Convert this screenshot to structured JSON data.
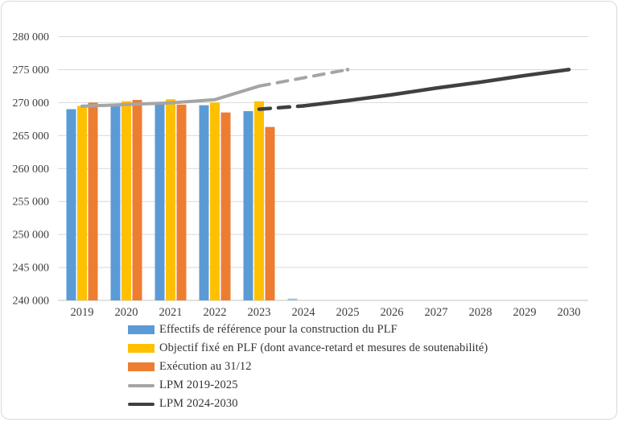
{
  "figure": {
    "background": "#ffffff",
    "border_color": "#d8d8d8",
    "grid_color": "#d9d9d9",
    "axis_line_color": "#c6c6c6",
    "axis_label_color": "#404040"
  },
  "legend": {
    "items": [
      {
        "label": "Effectifs de référence pour la construction du PLF",
        "swatch": "bar",
        "color": "#5B9BD5"
      },
      {
        "label": "Objectif fixé en PLF (dont avance-retard et mesures de soutenabilité)",
        "swatch": "bar",
        "color": "#FFC000"
      },
      {
        "label": "Exécution au 31/12",
        "swatch": "bar",
        "color": "#ED7D31"
      },
      {
        "label": "LPM 2019-2025",
        "swatch": "line",
        "color": "#A5A5A5"
      },
      {
        "label": "LPM 2024-2030",
        "swatch": "line",
        "color": "#404040"
      }
    ]
  },
  "chart_data": {
    "type": "bar",
    "subtype": "grouped-bars-with-lines",
    "title": "",
    "xlabel": "",
    "ylabel": "",
    "grid": true,
    "legend_position": "bottom-left",
    "categories": [
      "2019",
      "2020",
      "2021",
      "2022",
      "2023",
      "2024",
      "2025",
      "2026",
      "2027",
      "2028",
      "2029",
      "2030"
    ],
    "y_axis": {
      "min": 240000,
      "max": 280000,
      "step": 5000,
      "tick_labels": [
        "240 000",
        "245 000",
        "250 000",
        "255 000",
        "260 000",
        "265 000",
        "270 000",
        "275 000",
        "280 000"
      ]
    },
    "bar_series": [
      {
        "name": "Effectifs de référence pour la construction du PLF",
        "color": "#5B9BD5",
        "values": [
          269000,
          269500,
          269800,
          269600,
          268700,
          240300,
          null,
          null,
          null,
          null,
          null,
          null
        ],
        "muted_years": [
          "2024"
        ]
      },
      {
        "name": "Objectif fixé en PLF (dont avance-retard et mesures de soutenabilité)",
        "color": "#FFC000",
        "values": [
          269500,
          270200,
          270500,
          270000,
          270200,
          null,
          null,
          null,
          null,
          null,
          null,
          null
        ],
        "muted_years": []
      },
      {
        "name": "Exécution au 31/12",
        "color": "#ED7D31",
        "values": [
          270000,
          270400,
          269700,
          268500,
          266300,
          null,
          null,
          null,
          null,
          null,
          null,
          null
        ],
        "muted_years": []
      }
    ],
    "line_series": [
      {
        "name": "LPM 2019-2025",
        "color": "#A5A5A5",
        "start_category": "2019",
        "values": [
          269450,
          269700,
          269950,
          270450,
          272500,
          273750,
          275000
        ],
        "solid_through": "2023",
        "end_dot": true
      },
      {
        "name": "LPM 2024-2030",
        "color": "#404040",
        "start_category": "2023",
        "values": [
          269000,
          269500,
          270300,
          271200,
          272200,
          273100,
          274100,
          275000
        ],
        "dashed_through": "2024",
        "end_dot": false
      }
    ]
  }
}
